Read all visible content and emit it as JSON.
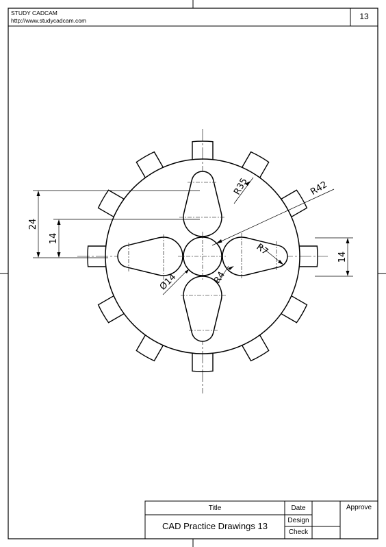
{
  "header": {
    "company": "STUDY CADCAM",
    "website": "http://www.studycadcam.com",
    "page_number": "13"
  },
  "dimensions": {
    "d_24": "24",
    "d_14_left": "14",
    "d_14_right": "14",
    "r35": "R35",
    "r42": "R42",
    "r7": "R7",
    "r4": "R4",
    "dia14": "Ø14"
  },
  "title_block": {
    "title_label": "Title",
    "date_label": "Date",
    "approve_label": "Approve",
    "drawing_title": "CAD Practice Drawings 13",
    "design_label": "Design",
    "check_label": "Check"
  },
  "colors": {
    "line": "#000000",
    "paper": "#ffffff"
  }
}
